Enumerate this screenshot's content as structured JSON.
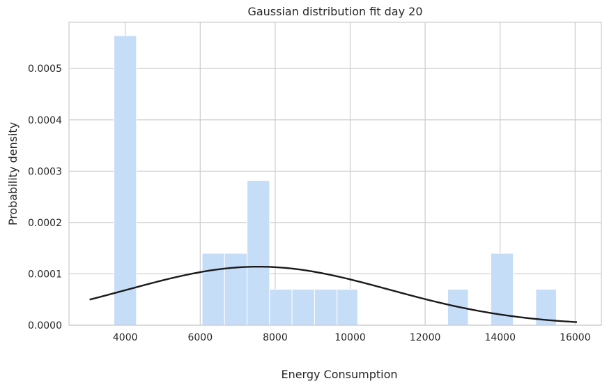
{
  "chart_data": {
    "type": "bar",
    "title": "Gaussian distribution fit day 20",
    "xlabel": "Energy Consumption",
    "ylabel": "Probability density",
    "xlim": [
      2500,
      16700
    ],
    "ylim": [
      0,
      0.00059
    ],
    "xticks": [
      4000,
      6000,
      8000,
      10000,
      12000,
      14000,
      16000
    ],
    "xtick_labels": [
      "4000",
      "6000",
      "8000",
      "10000",
      "12000",
      "14000",
      "16000"
    ],
    "yticks": [
      0,
      0.0001,
      0.0002,
      0.0003,
      0.0004,
      0.0005
    ],
    "ytick_labels": [
      "0.0000",
      "0.0001",
      "0.0002",
      "0.0003",
      "0.0004",
      "0.0005"
    ],
    "grid": true,
    "histogram": {
      "bin_edges": [
        3700,
        4300,
        4900,
        5500,
        6050,
        6650,
        7250,
        7850,
        8450,
        9050,
        9650,
        10200,
        10800,
        11400,
        12000,
        12600,
        13150,
        13750,
        14350,
        14950,
        15500
      ],
      "values": [
        0.000564,
        0,
        0,
        0,
        0.00014,
        0.00014,
        0.000282,
        7e-05,
        7e-05,
        7e-05,
        7e-05,
        0,
        0,
        0,
        0,
        7e-05,
        0,
        0.00014,
        0,
        7e-05
      ],
      "color": "#c6ddf8"
    },
    "fit_curve": {
      "type": "gaussian",
      "mean": 7550,
      "std": 3500,
      "x_range": [
        3050,
        16050
      ],
      "color": "#1a1a1a"
    }
  }
}
